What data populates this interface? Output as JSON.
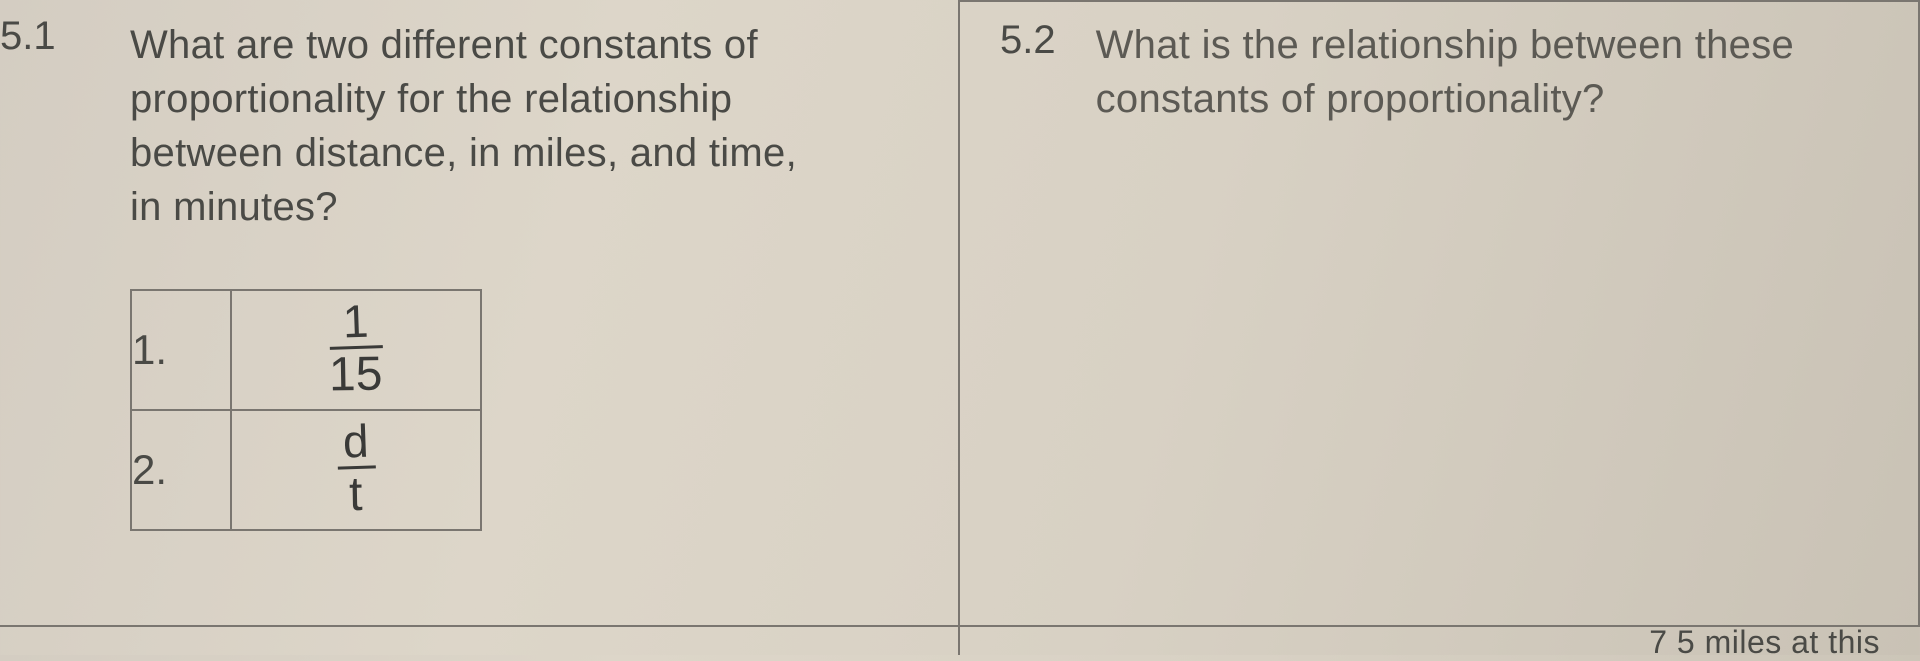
{
  "left": {
    "number": "5.1",
    "question": "What are two different constants of proportionality for the relationship between distance, in miles, and time, in minutes?",
    "answers": [
      {
        "label": "1.",
        "numerator": "1",
        "denominator": "15"
      },
      {
        "label": "2.",
        "numerator": "d",
        "denominator": "t"
      }
    ]
  },
  "right": {
    "number": "5.2",
    "question": "What is the relationship between these constants of proportionality?"
  },
  "fragment": "7 5 miles at this",
  "colors": {
    "text": "#4a4a46",
    "border": "#7a7670",
    "handwriting": "#3a3a38",
    "bg_start": "#d4cdc2",
    "bg_end": "#c9c2b5"
  }
}
